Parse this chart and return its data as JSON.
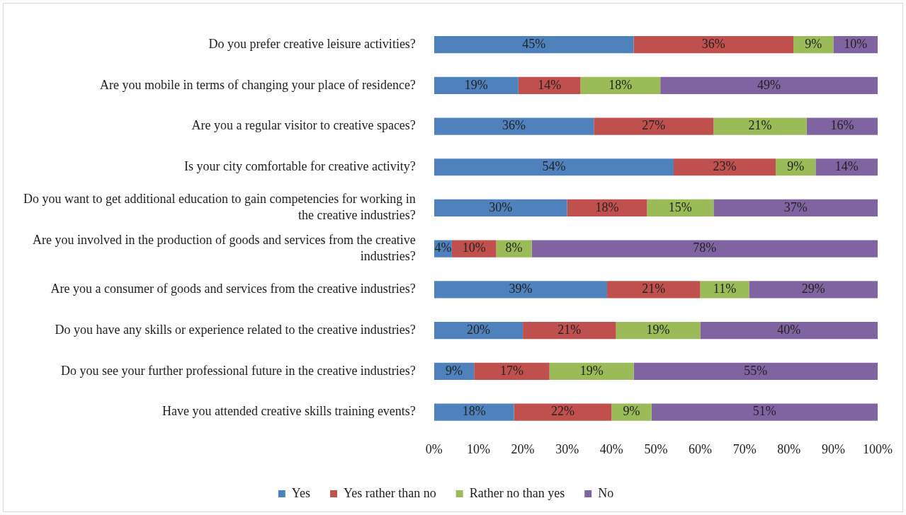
{
  "chart_data": {
    "type": "bar",
    "orientation": "horizontal",
    "stacked": true,
    "categories": [
      "Do you prefer creative leisure activities?",
      "Are you mobile in terms of changing your place of residence?",
      "Are you a regular visitor to creative spaces?",
      "Is your city comfortable for creative activity?",
      "Do you want to get additional education to gain competencies for working in the creative industries?",
      "Are you involved in the production of goods and services from the creative industries?",
      "Are you a consumer of goods and services from the creative industries?",
      "Do you have any skills or experience related to the creative industries?",
      "Do you see your further professional future in the creative industries?",
      "Have you attended creative skills training events?"
    ],
    "series": [
      {
        "name": "Yes",
        "color": "#4f81bd",
        "values": [
          45,
          19,
          36,
          54,
          30,
          4,
          39,
          20,
          9,
          18
        ],
        "value_labels": [
          "45%",
          "19%",
          "36%",
          "54%",
          "30%",
          "4%",
          "39%",
          "20%",
          "9%",
          "18%"
        ]
      },
      {
        "name": "Yes rather than no",
        "color": "#c0504d",
        "values": [
          36,
          14,
          27,
          23,
          18,
          10,
          21,
          21,
          17,
          22
        ],
        "value_labels": [
          "36%",
          "14%",
          "27%",
          "23%",
          "18%",
          "10%",
          "21%",
          "21%",
          "17%",
          "22%"
        ]
      },
      {
        "name": "Rather no than yes",
        "color": "#9bbb59",
        "values": [
          9,
          18,
          21,
          9,
          15,
          8,
          11,
          19,
          19,
          9
        ],
        "value_labels": [
          "9%",
          "18%",
          "21%",
          "9%",
          "15%",
          "8%",
          "11%",
          "19%",
          "19%",
          "9%"
        ]
      },
      {
        "name": "No",
        "color": "#8064a2",
        "values": [
          10,
          49,
          16,
          14,
          37,
          78,
          29,
          40,
          55,
          51
        ],
        "value_labels": [
          "10%",
          "49%",
          "16%",
          "14%",
          "37%",
          "78%",
          "29%",
          "40%",
          "55%",
          "51%"
        ]
      }
    ],
    "xlim": [
      0,
      100
    ],
    "xticks": [
      {
        "value": 0,
        "label": "0%"
      },
      {
        "value": 10,
        "label": "10%"
      },
      {
        "value": 20,
        "label": "20%"
      },
      {
        "value": 30,
        "label": "30%"
      },
      {
        "value": 40,
        "label": "40%"
      },
      {
        "value": 50,
        "label": "50%"
      },
      {
        "value": 60,
        "label": "60%"
      },
      {
        "value": 70,
        "label": "70%"
      },
      {
        "value": 80,
        "label": "80%"
      },
      {
        "value": 90,
        "label": "90%"
      },
      {
        "value": 100,
        "label": "100%"
      }
    ],
    "grid": false,
    "legend": "bottom"
  }
}
